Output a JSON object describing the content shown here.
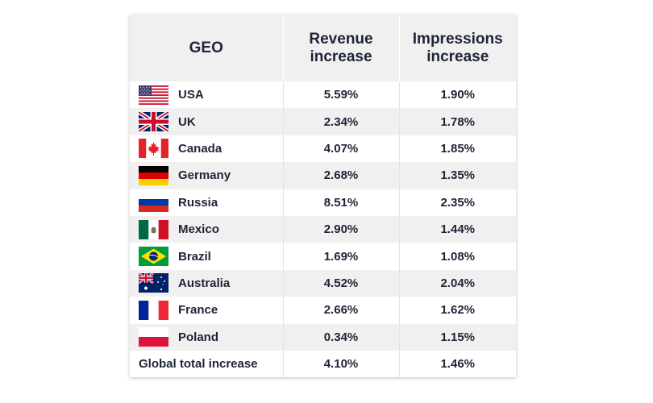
{
  "headers": {
    "geo": "GEO",
    "revenue": [
      "Revenue",
      "increase"
    ],
    "impressions": [
      "Impressions",
      "increase"
    ]
  },
  "rows": [
    {
      "country": "USA",
      "flag_icon": "usa-flag-icon",
      "revenue": "5.59%",
      "impressions": "1.90%"
    },
    {
      "country": "UK",
      "flag_icon": "uk-flag-icon",
      "revenue": "2.34%",
      "impressions": "1.78%"
    },
    {
      "country": "Canada",
      "flag_icon": "canada-flag-icon",
      "revenue": "4.07%",
      "impressions": "1.85%"
    },
    {
      "country": "Germany",
      "flag_icon": "germany-flag-icon",
      "revenue": "2.68%",
      "impressions": "1.35%"
    },
    {
      "country": "Russia",
      "flag_icon": "russia-flag-icon",
      "revenue": "8.51%",
      "impressions": "2.35%"
    },
    {
      "country": "Mexico",
      "flag_icon": "mexico-flag-icon",
      "revenue": "2.90%",
      "impressions": "1.44%"
    },
    {
      "country": "Brazil",
      "flag_icon": "brazil-flag-icon",
      "revenue": "1.69%",
      "impressions": "1.08%"
    },
    {
      "country": "Australia",
      "flag_icon": "australia-flag-icon",
      "revenue": "4.52%",
      "impressions": "2.04%"
    },
    {
      "country": "France",
      "flag_icon": "france-flag-icon",
      "revenue": "2.66%",
      "impressions": "1.62%"
    },
    {
      "country": "Poland",
      "flag_icon": "poland-flag-icon",
      "revenue": "0.34%",
      "impressions": "1.15%"
    }
  ],
  "total": {
    "label": "Global total increase",
    "revenue": "4.10%",
    "impressions": "1.46%"
  },
  "colors": {
    "text": "#1e2438",
    "header_bg": "#f0f0f0",
    "stripe_bg": "#f0f0f0"
  }
}
